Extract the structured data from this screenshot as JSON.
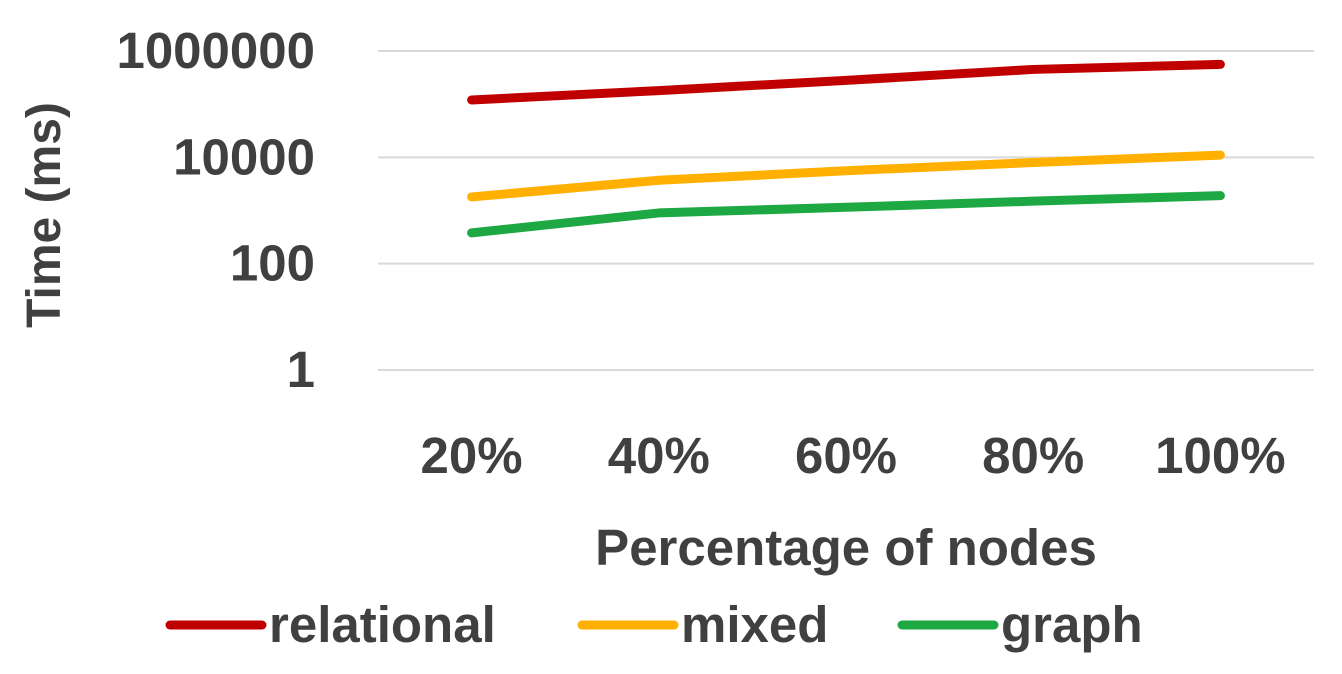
{
  "chart_data": {
    "type": "line",
    "title": "",
    "xlabel": "Percentage of nodes",
    "ylabel": "Time (ms)",
    "yscale": "log",
    "ylim": [
      1,
      1000000
    ],
    "yticks": [
      1,
      100,
      10000,
      1000000
    ],
    "ytick_labels": [
      "1",
      "100",
      "10000",
      "1000000"
    ],
    "grid": "horizontal",
    "legend_position": "bottom",
    "categories": [
      "20%",
      "40%",
      "60%",
      "80%",
      "100%"
    ],
    "series": [
      {
        "name": "relational",
        "color": "#C00000",
        "values": [
          120000,
          180000,
          280000,
          450000,
          560000
        ]
      },
      {
        "name": "mixed",
        "color": "#FFB000",
        "values": [
          1800,
          3700,
          5600,
          8000,
          11000
        ]
      },
      {
        "name": "graph",
        "color": "#1EA843",
        "values": [
          380,
          900,
          1150,
          1500,
          1900
        ]
      }
    ]
  }
}
